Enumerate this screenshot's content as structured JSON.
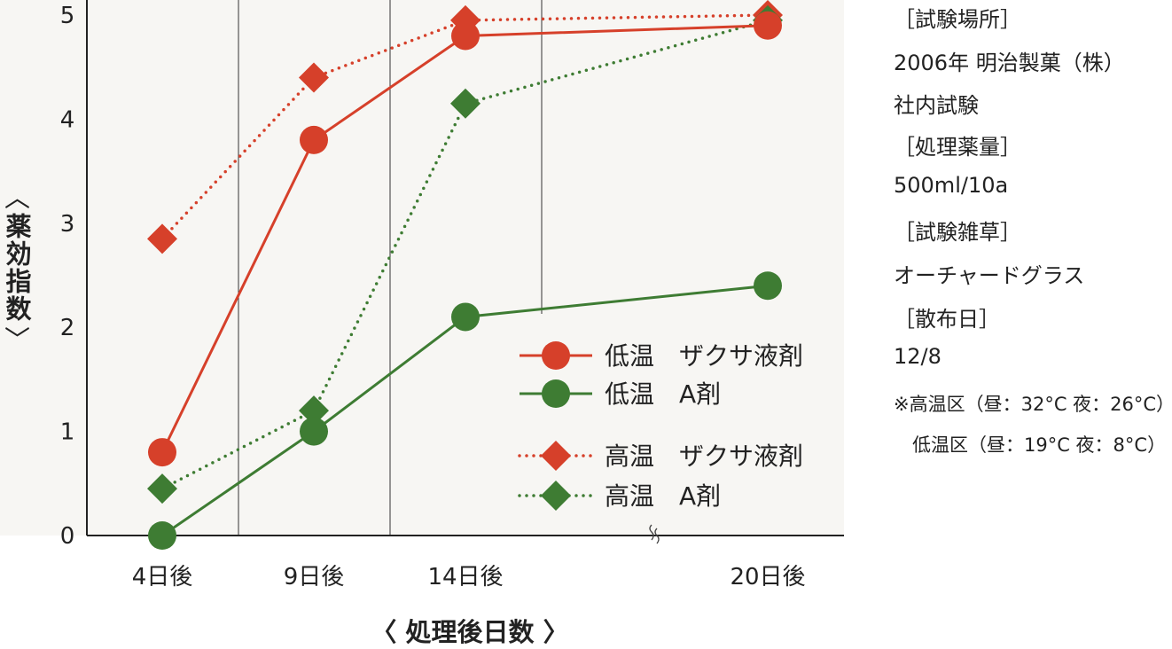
{
  "chart_data": {
    "type": "line",
    "title": "",
    "ylabel": "薬効指数",
    "xlabel": "処理後日数",
    "ylim": [
      0,
      5
    ],
    "yticks": [
      "0",
      "1",
      "2",
      "3",
      "4",
      "5"
    ],
    "categories": [
      "4日後",
      "9日後",
      "14日後",
      "20日後"
    ],
    "axis_break": "between 14日後 and 20日後",
    "grid": "vertical lines between categories",
    "legend_position": "bottom-right",
    "series": [
      {
        "name": "低温　ザクサ液剤",
        "values": [
          0.8,
          3.8,
          4.8,
          4.9
        ],
        "color": "#d6402a",
        "marker": "circle",
        "line": "solid"
      },
      {
        "name": "低温　A剤",
        "values": [
          0.0,
          1.0,
          2.1,
          2.4
        ],
        "color": "#3e7c33",
        "marker": "circle",
        "line": "solid"
      },
      {
        "name": "高温　ザクサ液剤",
        "values": [
          2.85,
          4.4,
          4.95,
          5.0
        ],
        "color": "#d6402a",
        "marker": "diamond",
        "line": "dotted"
      },
      {
        "name": "高温　A剤",
        "values": [
          0.45,
          1.2,
          4.15,
          4.95
        ],
        "color": "#3e7c33",
        "marker": "diamond",
        "line": "dotted"
      }
    ]
  },
  "ylabel_brackets": {
    "open": "〈",
    "close": "〉"
  },
  "xlabel_display": "〈 処理後日数 〉",
  "info": {
    "lines": [
      "［試験場所］",
      "2006年 明治製菓（株）",
      "社内試験",
      "［処理薬量］",
      "500ml/10a",
      "［試験雑草］",
      "オーチャードグラス",
      "［散布日］",
      "12/8"
    ],
    "note1": "※高温区（昼：32°C 夜：26°C）",
    "note2": "　低温区（昼：19°C 夜：8°C）"
  }
}
